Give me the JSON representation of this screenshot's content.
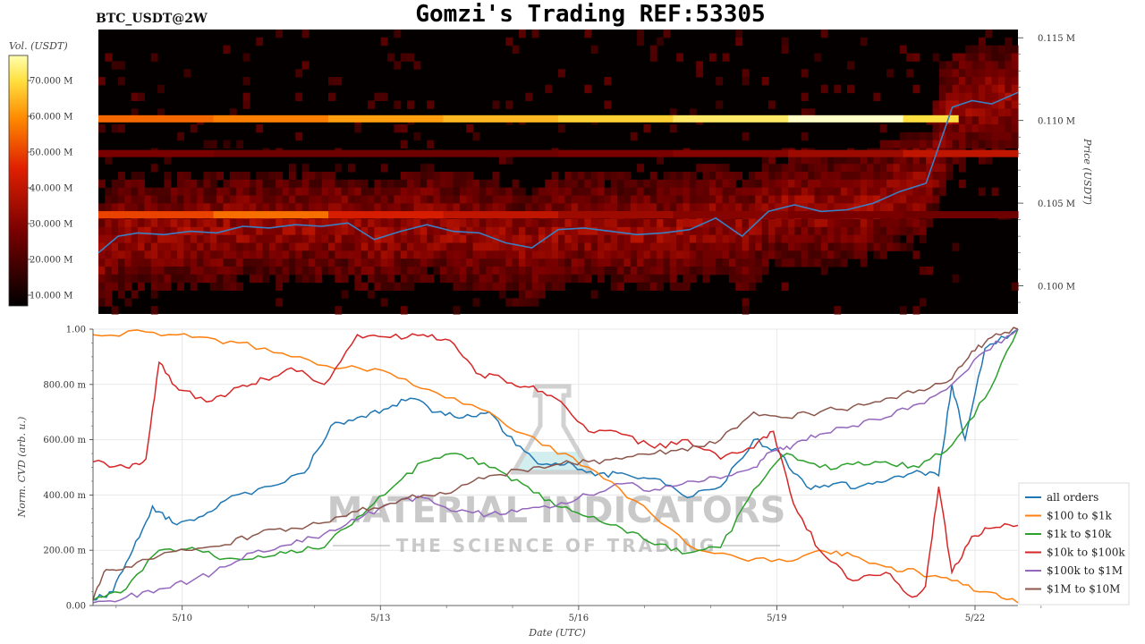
{
  "header": {
    "title": "Gomzi's Trading REF:53305",
    "pair": "BTC_USDT@2W"
  },
  "watermark": {
    "line1": "MATERIAL INDICATORS",
    "line2": "THE SCIENCE OF TRADING"
  },
  "colors": {
    "price_line": "#3b7fc4",
    "heatmap_bg": "#050000",
    "grid": "#e8e8e8"
  },
  "chart_data": [
    {
      "type": "heatmap",
      "title": "",
      "colorbar": {
        "label": "Vol. (USDT)",
        "ticks": [
          "70.000 M",
          "60.000 M",
          "50.000 M",
          "40.000 M",
          "30.000 M",
          "20.000 M",
          "10.000 M"
        ],
        "tick_values": [
          70,
          60,
          50,
          40,
          30,
          20,
          10
        ],
        "range": [
          7,
          77
        ],
        "unit": "M"
      },
      "ylabel": "Price (USDT)",
      "ylim": [
        0.0983,
        0.1155
      ],
      "y_ticks": [
        "0.115 M",
        "0.110 M",
        "0.105 M",
        "0.100 M"
      ],
      "y_tick_values": [
        0.115,
        0.11,
        0.105,
        0.1
      ],
      "xlim": [
        0,
        14
      ],
      "price_series": {
        "name": "",
        "x": [
          0,
          0.3,
          0.6,
          1.0,
          1.4,
          1.8,
          2.2,
          2.6,
          3.0,
          3.4,
          3.8,
          4.2,
          4.6,
          5.0,
          5.4,
          5.8,
          6.2,
          6.6,
          7.0,
          7.4,
          7.8,
          8.2,
          8.6,
          9.0,
          9.4,
          9.8,
          10.2,
          10.6,
          11.0,
          11.4,
          11.8,
          12.2,
          12.6,
          13.0,
          13.3,
          13.6,
          14.0
        ],
        "y": [
          0.102,
          0.103,
          0.1032,
          0.1031,
          0.1033,
          0.1032,
          0.1036,
          0.1035,
          0.1037,
          0.1036,
          0.1038,
          0.1028,
          0.1033,
          0.1037,
          0.1033,
          0.1032,
          0.1026,
          0.1023,
          0.1034,
          0.1035,
          0.1033,
          0.1031,
          0.1032,
          0.1034,
          0.1041,
          0.103,
          0.1045,
          0.1049,
          0.1045,
          0.1046,
          0.105,
          0.1057,
          0.1062,
          0.1108,
          0.1112,
          0.111,
          0.1117
        ]
      },
      "bands": [
        {
          "price": 0.1101,
          "volume": [
            55,
            58,
            62,
            65,
            68,
            72,
            77,
            70
          ]
        },
        {
          "price": 0.1043,
          "volume": [
            50,
            56,
            44,
            40,
            34,
            30,
            28,
            26
          ]
        },
        {
          "price": 0.108,
          "volume": [
            28,
            26,
            26,
            26,
            28,
            30,
            34,
            40
          ]
        }
      ]
    },
    {
      "type": "line",
      "title": "",
      "xlabel": "Date (UTC)",
      "ylabel": "Norm. CVD (arb. u.)",
      "xlim": [
        0,
        14
      ],
      "ylim": [
        0,
        1
      ],
      "x_tick_labels": [
        "5/10",
        "5/13",
        "5/16",
        "5/19",
        "5/22"
      ],
      "x_tick_values": [
        1.35,
        4.35,
        7.35,
        10.35,
        13.35
      ],
      "y_tick_labels": [
        "0.00",
        "200.00 m",
        "400.00 m",
        "600.00 m",
        "800.00 m",
        "1.00"
      ],
      "y_tick_values": [
        0,
        0.2,
        0.4,
        0.6,
        0.8,
        1.0
      ],
      "legend_position": "bottom-right",
      "grid": true,
      "series": [
        {
          "name": "all orders",
          "color": "#1f77b4",
          "x": [
            0,
            0.3,
            0.6,
            0.9,
            1.2,
            1.6,
            2.0,
            2.6,
            3.2,
            3.6,
            4.0,
            4.4,
            4.8,
            5.2,
            5.6,
            6.0,
            6.4,
            6.8,
            7.2,
            7.6,
            8.0,
            8.5,
            9.0,
            9.5,
            10.0,
            10.4,
            10.8,
            11.2,
            11.6,
            12.0,
            12.4,
            12.8,
            13.0,
            13.2,
            13.5,
            14.0
          ],
          "y": [
            0.02,
            0.05,
            0.2,
            0.36,
            0.3,
            0.32,
            0.38,
            0.43,
            0.48,
            0.65,
            0.68,
            0.71,
            0.75,
            0.7,
            0.68,
            0.7,
            0.58,
            0.51,
            0.52,
            0.47,
            0.48,
            0.46,
            0.39,
            0.43,
            0.6,
            0.55,
            0.43,
            0.44,
            0.43,
            0.45,
            0.48,
            0.47,
            0.8,
            0.6,
            0.93,
            1.0
          ]
        },
        {
          "name": "$100 to $1k",
          "color": "#ff7f0e",
          "x": [
            0,
            0.8,
            1.5,
            2.2,
            3.0,
            3.8,
            4.5,
            5.2,
            6.0,
            6.8,
            7.5,
            8.2,
            9.0,
            9.8,
            10.5,
            11.0,
            11.5,
            12.0,
            12.5,
            13.0,
            13.5,
            14.0
          ],
          "y": [
            0.98,
            0.99,
            0.97,
            0.95,
            0.9,
            0.86,
            0.84,
            0.77,
            0.7,
            0.58,
            0.5,
            0.38,
            0.22,
            0.17,
            0.16,
            0.2,
            0.18,
            0.14,
            0.12,
            0.09,
            0.05,
            0.01
          ]
        },
        {
          "name": "$1k to $10k",
          "color": "#2ca02c",
          "x": [
            0,
            0.5,
            1.0,
            1.5,
            2.0,
            2.5,
            3.0,
            3.5,
            4.0,
            4.5,
            5.0,
            5.5,
            6.0,
            6.5,
            7.0,
            7.5,
            8.0,
            8.5,
            9.0,
            9.5,
            10.0,
            10.5,
            11.0,
            11.5,
            12.0,
            12.5,
            13.0,
            13.5,
            14.0
          ],
          "y": [
            0.02,
            0.06,
            0.2,
            0.21,
            0.17,
            0.18,
            0.2,
            0.21,
            0.32,
            0.42,
            0.52,
            0.55,
            0.5,
            0.44,
            0.36,
            0.32,
            0.28,
            0.22,
            0.19,
            0.21,
            0.42,
            0.55,
            0.5,
            0.51,
            0.52,
            0.5,
            0.58,
            0.75,
            1.0
          ]
        },
        {
          "name": "$10k to $100k",
          "color": "#d62728",
          "x": [
            0,
            0.5,
            0.8,
            1.0,
            1.3,
            1.8,
            2.2,
            2.6,
            3.0,
            3.5,
            4.0,
            4.5,
            5.0,
            5.4,
            5.8,
            6.2,
            6.6,
            7.0,
            7.5,
            8.0,
            8.5,
            9.0,
            9.5,
            10.0,
            10.3,
            10.6,
            11.0,
            11.5,
            12.0,
            12.4,
            12.6,
            12.8,
            13.0,
            13.3,
            13.6,
            14.0
          ],
          "y": [
            0.52,
            0.5,
            0.53,
            0.88,
            0.78,
            0.74,
            0.79,
            0.82,
            0.86,
            0.8,
            0.98,
            0.97,
            0.98,
            0.96,
            0.84,
            0.82,
            0.79,
            0.75,
            0.63,
            0.62,
            0.57,
            0.6,
            0.53,
            0.57,
            0.63,
            0.37,
            0.2,
            0.09,
            0.12,
            0.03,
            0.07,
            0.43,
            0.12,
            0.25,
            0.28,
            0.29
          ]
        },
        {
          "name": "$100k to $1M",
          "color": "#9467bd",
          "x": [
            0,
            0.5,
            1.0,
            1.5,
            2.0,
            2.5,
            3.0,
            3.5,
            4.0,
            4.5,
            5.0,
            5.5,
            6.0,
            6.5,
            7.0,
            7.5,
            8.0,
            8.5,
            9.0,
            9.5,
            10.0,
            10.3,
            10.6,
            11.0,
            11.5,
            12.0,
            12.5,
            13.0,
            13.5,
            14.0
          ],
          "y": [
            0.01,
            0.03,
            0.06,
            0.09,
            0.14,
            0.2,
            0.22,
            0.26,
            0.31,
            0.37,
            0.39,
            0.34,
            0.33,
            0.35,
            0.36,
            0.4,
            0.44,
            0.42,
            0.45,
            0.46,
            0.5,
            0.56,
            0.58,
            0.62,
            0.65,
            0.68,
            0.73,
            0.8,
            0.92,
            1.0
          ]
        },
        {
          "name": "$1M to $10M",
          "color": "#8c564b",
          "x": [
            0,
            0.2,
            0.5,
            1.0,
            1.5,
            2.0,
            2.5,
            3.0,
            3.5,
            4.0,
            4.5,
            5.0,
            5.5,
            6.0,
            6.5,
            7.0,
            7.5,
            8.0,
            8.5,
            9.0,
            9.5,
            10.0,
            10.5,
            11.0,
            11.5,
            12.0,
            12.5,
            13.0,
            13.3,
            13.6,
            14.0
          ],
          "y": [
            0.02,
            0.13,
            0.14,
            0.18,
            0.2,
            0.22,
            0.26,
            0.28,
            0.3,
            0.34,
            0.37,
            0.4,
            0.42,
            0.47,
            0.49,
            0.51,
            0.52,
            0.53,
            0.55,
            0.56,
            0.6,
            0.7,
            0.68,
            0.7,
            0.72,
            0.75,
            0.78,
            0.82,
            0.92,
            0.97,
            1.0
          ]
        }
      ]
    }
  ]
}
